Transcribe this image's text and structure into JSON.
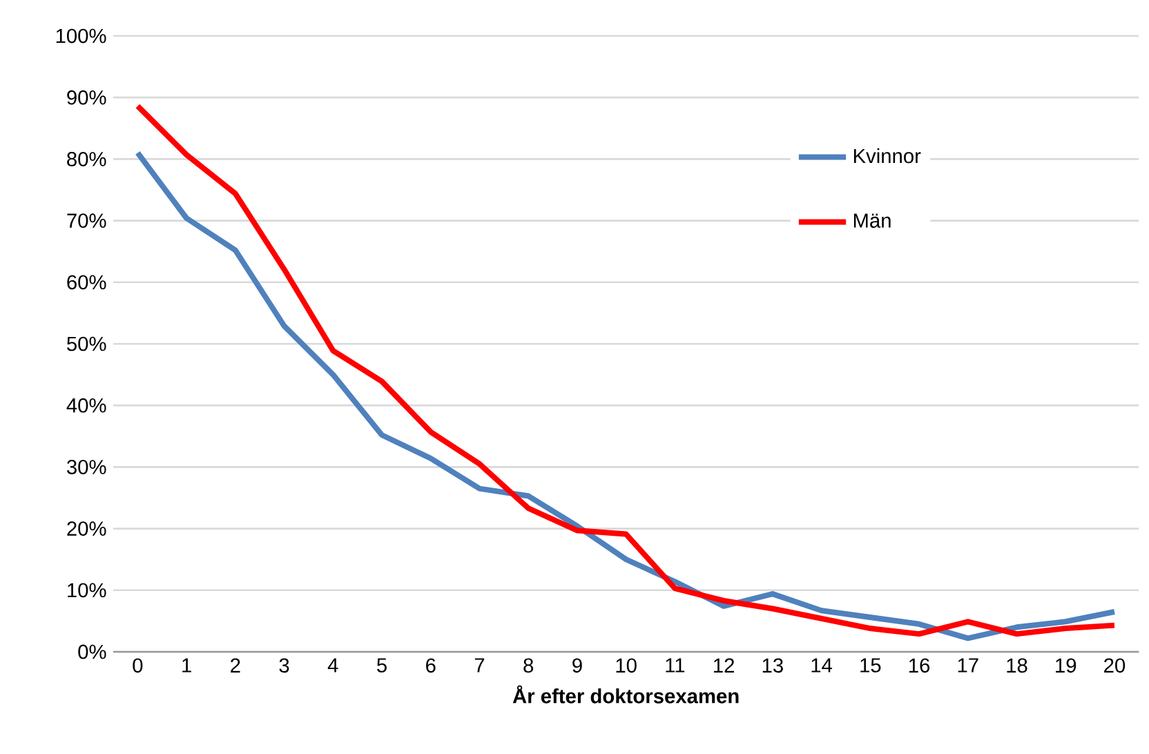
{
  "chart_data": {
    "type": "line",
    "xlabel": "År efter doktorsexamen",
    "categories": [
      "0",
      "1",
      "2",
      "3",
      "4",
      "5",
      "6",
      "7",
      "8",
      "9",
      "10",
      "11",
      "12",
      "13",
      "14",
      "15",
      "16",
      "17",
      "18",
      "19",
      "20"
    ],
    "series": [
      {
        "name": "Kvinnor",
        "color": "#4f81bd",
        "values": [
          81,
          70.4,
          65.2,
          52.9,
          45,
          35.2,
          31.4,
          26.5,
          25.3,
          20.4,
          15,
          11.4,
          7.4,
          9.4,
          6.7,
          5.6,
          4.5,
          2.2,
          4,
          4.9,
          6.5
        ]
      },
      {
        "name": "Män",
        "color": "#ff0000",
        "values": [
          88.6,
          80.7,
          74.4,
          62.1,
          48.9,
          43.9,
          35.7,
          30.5,
          23.3,
          19.7,
          19.1,
          10.3,
          8.3,
          7,
          5.4,
          3.8,
          2.9,
          4.9,
          2.9,
          3.8,
          4.3
        ]
      }
    ],
    "ylim": [
      0,
      100
    ],
    "yticks": [
      {
        "value": 0,
        "label": "0%"
      },
      {
        "value": 10,
        "label": "10%"
      },
      {
        "value": 20,
        "label": "20%"
      },
      {
        "value": 30,
        "label": "30%"
      },
      {
        "value": 40,
        "label": "40%"
      },
      {
        "value": 50,
        "label": "50%"
      },
      {
        "value": 60,
        "label": "60%"
      },
      {
        "value": 70,
        "label": "70%"
      },
      {
        "value": 80,
        "label": "80%"
      },
      {
        "value": 90,
        "label": "90%"
      },
      {
        "value": 100,
        "label": "100%"
      }
    ],
    "grid": "y",
    "legend": "top right",
    "marker": "none",
    "line_style": "solid"
  }
}
